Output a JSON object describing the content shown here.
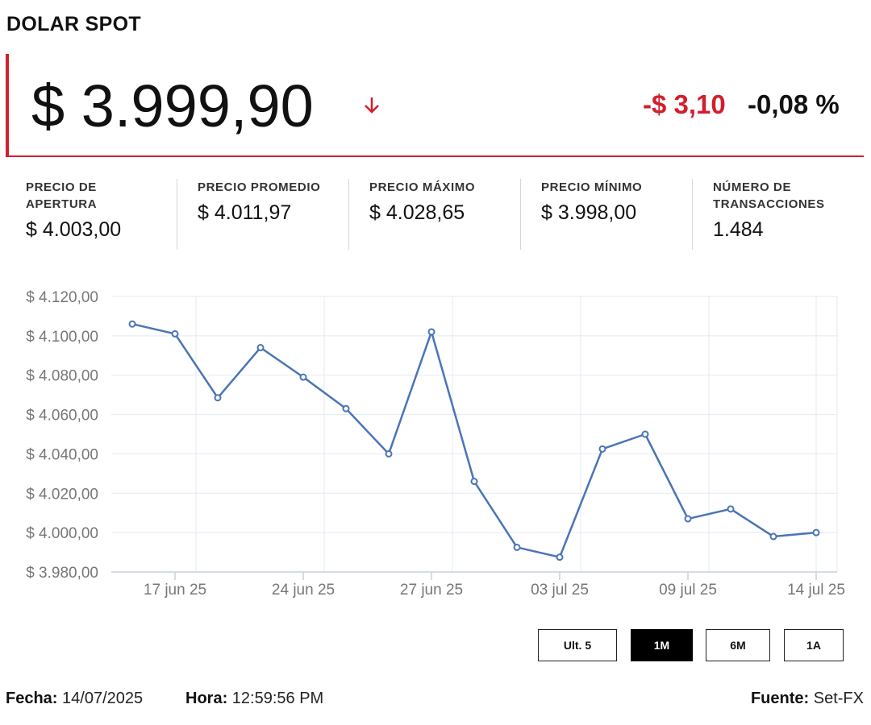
{
  "header": {
    "title": "DOLAR SPOT",
    "price": "$ 3.999,90",
    "change": "-$ 3,10",
    "change_pct": "-0,08 %",
    "trend_icon": "arrow-down-icon",
    "down_color": "#d21f2c"
  },
  "stats": [
    {
      "label": "PRECIO DE APERTURA",
      "value": "$ 4.003,00"
    },
    {
      "label": "PRECIO PROMEDIO",
      "value": "$ 4.011,97"
    },
    {
      "label": "PRECIO MÁXIMO",
      "value": "$ 4.028,65"
    },
    {
      "label": "PRECIO MÍNIMO",
      "value": "$ 3.998,00"
    },
    {
      "label": "NÚMERO DE TRANSACCIONES",
      "value": "1.484"
    }
  ],
  "chart_data": {
    "type": "line",
    "title": "",
    "xlabel": "",
    "ylabel": "",
    "ylim": [
      3980,
      4120
    ],
    "yticks": [
      3980,
      4000,
      4020,
      4040,
      4060,
      4080,
      4100,
      4120
    ],
    "ytick_labels": [
      "$ 3.980,00",
      "$ 4.000,00",
      "$ 4.020,00",
      "$ 4.040,00",
      "$ 4.060,00",
      "$ 4.080,00",
      "$ 4.100,00",
      "$ 4.120,00"
    ],
    "xtick_labels": [
      "17 jun 25",
      "24 jun 25",
      "27 jun 25",
      "03 jul 25",
      "09 jul 25",
      "14 jul 25"
    ],
    "xtick_index": [
      1,
      4,
      7,
      10,
      13,
      16
    ],
    "grid": true,
    "line_color": "#4a74b8",
    "series": [
      {
        "values": [
          4106,
          4101,
          4068.5,
          4094,
          4079,
          4063,
          4040,
          4102,
          4026,
          3992.5,
          3987.5,
          4042.5,
          4050,
          4007,
          4012,
          3998,
          4000
        ]
      }
    ]
  },
  "range_buttons": [
    {
      "label": "Ult. 5",
      "active": false
    },
    {
      "label": "1M",
      "active": true
    },
    {
      "label": "6M",
      "active": false
    },
    {
      "label": "1A",
      "active": false
    }
  ],
  "footer": {
    "fecha_label": "Fecha:",
    "fecha_value": "14/07/2025",
    "hora_label": "Hora:",
    "hora_value": "12:59:56 PM",
    "fuente_label": "Fuente:",
    "fuente_value": "Set-FX"
  }
}
